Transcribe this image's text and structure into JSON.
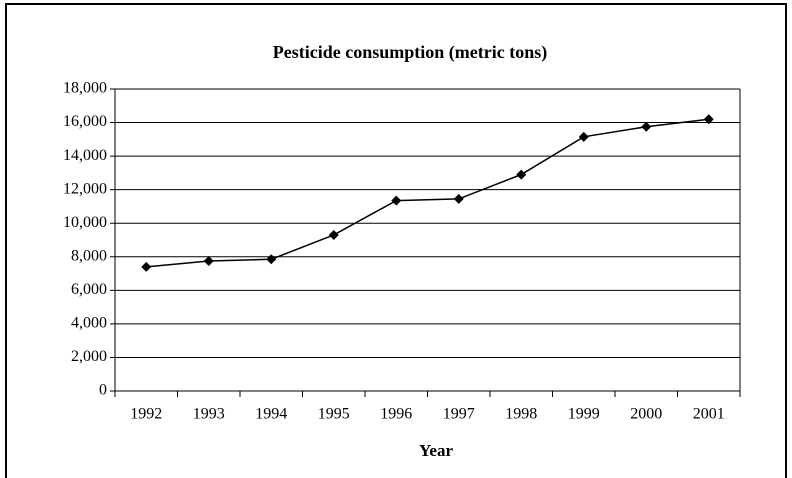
{
  "chart_data": {
    "type": "line",
    "title": "Pesticide consumption (metric tons)",
    "xlabel": "Year",
    "categories": [
      "1992",
      "1993",
      "1994",
      "1995",
      "1996",
      "1997",
      "1998",
      "1999",
      "2000",
      "2001"
    ],
    "series": [
      {
        "name": "Pesticide consumption",
        "color": "#000000",
        "values": [
          7400,
          7750,
          7850,
          9300,
          11350,
          11450,
          12900,
          15150,
          15750,
          16200
        ]
      }
    ],
    "ylim": [
      0,
      18000
    ],
    "yticks": [
      0,
      {
        "value": 2000,
        "label": "2,000"
      },
      {
        "value": 4000,
        "label": "4,000"
      },
      {
        "value": 6000,
        "label": "6,000"
      },
      {
        "value": 8000,
        "label": "8,000"
      },
      {
        "value": 10000,
        "label": "10,000"
      },
      {
        "value": 12000,
        "label": "12,000"
      },
      {
        "value": 14000,
        "label": "14,000"
      },
      {
        "value": 16000,
        "label": "16,000"
      },
      {
        "value": 18000,
        "label": "18,000"
      }
    ],
    "grid": true
  }
}
